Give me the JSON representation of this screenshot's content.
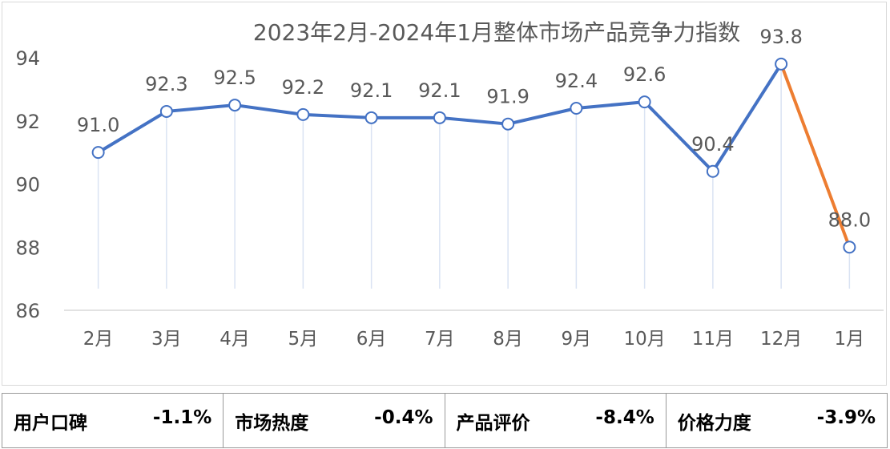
{
  "chart_data": {
    "type": "line",
    "title": "2023年2月-2024年1月整体市场产品竞争力指数",
    "xlabel": "",
    "ylabel": "",
    "categories": [
      "2月",
      "3月",
      "4月",
      "5月",
      "6月",
      "7月",
      "8月",
      "9月",
      "10月",
      "11月",
      "12月",
      "1月"
    ],
    "series": [
      {
        "values": [
          91.0,
          92.3,
          92.5,
          92.2,
          92.1,
          92.1,
          91.9,
          92.4,
          92.6,
          90.4,
          93.8,
          88.0
        ]
      }
    ],
    "data_labels": [
      "91.0",
      "92.3",
      "92.5",
      "92.2",
      "92.1",
      "92.1",
      "91.9",
      "92.4",
      "92.6",
      "90.4",
      "93.8",
      "88.0"
    ],
    "ylim": [
      86,
      94
    ],
    "yticks": [
      86,
      88,
      90,
      92,
      94
    ],
    "highlight_last_segment": true,
    "colors": {
      "line": "#4472C4",
      "highlight": "#ED7D31",
      "marker_fill": "#ffffff",
      "drop_line": "#dae3f3",
      "axis": "#d9d9d9",
      "text": "#595959"
    },
    "grid": false,
    "legend": "none"
  },
  "metrics": [
    {
      "label": "用户口碑",
      "value": "-1.1%"
    },
    {
      "label": "市场热度",
      "value": "-0.4%"
    },
    {
      "label": "产品评价",
      "value": "-8.4%"
    },
    {
      "label": "价格力度",
      "value": "-3.9%"
    }
  ]
}
